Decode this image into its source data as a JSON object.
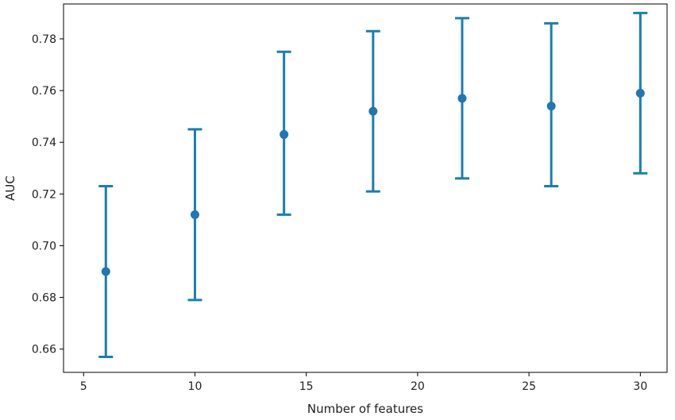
{
  "chart_data": {
    "type": "scatter",
    "title": "",
    "xlabel": "Number of features",
    "ylabel": "AUC",
    "xlim": [
      4.1,
      31.2
    ],
    "ylim": [
      0.651,
      0.7935
    ],
    "xticks": [
      5,
      10,
      15,
      20,
      25,
      30
    ],
    "yticks": [
      0.66,
      0.68,
      0.7,
      0.72,
      0.74,
      0.76,
      0.78
    ],
    "ytick_labels": [
      "0.66",
      "0.68",
      "0.70",
      "0.72",
      "0.74",
      "0.76",
      "0.78"
    ],
    "grid": false,
    "legend": "none",
    "color": "#1f77b4",
    "error_color": "#1a7fb0",
    "x": [
      6,
      10,
      14,
      18,
      22,
      26,
      30
    ],
    "y": [
      0.69,
      0.712,
      0.743,
      0.752,
      0.757,
      0.754,
      0.759
    ],
    "err_low": [
      0.657,
      0.679,
      0.712,
      0.721,
      0.726,
      0.723,
      0.728
    ],
    "err_high": [
      0.723,
      0.745,
      0.775,
      0.783,
      0.788,
      0.786,
      0.79
    ]
  }
}
